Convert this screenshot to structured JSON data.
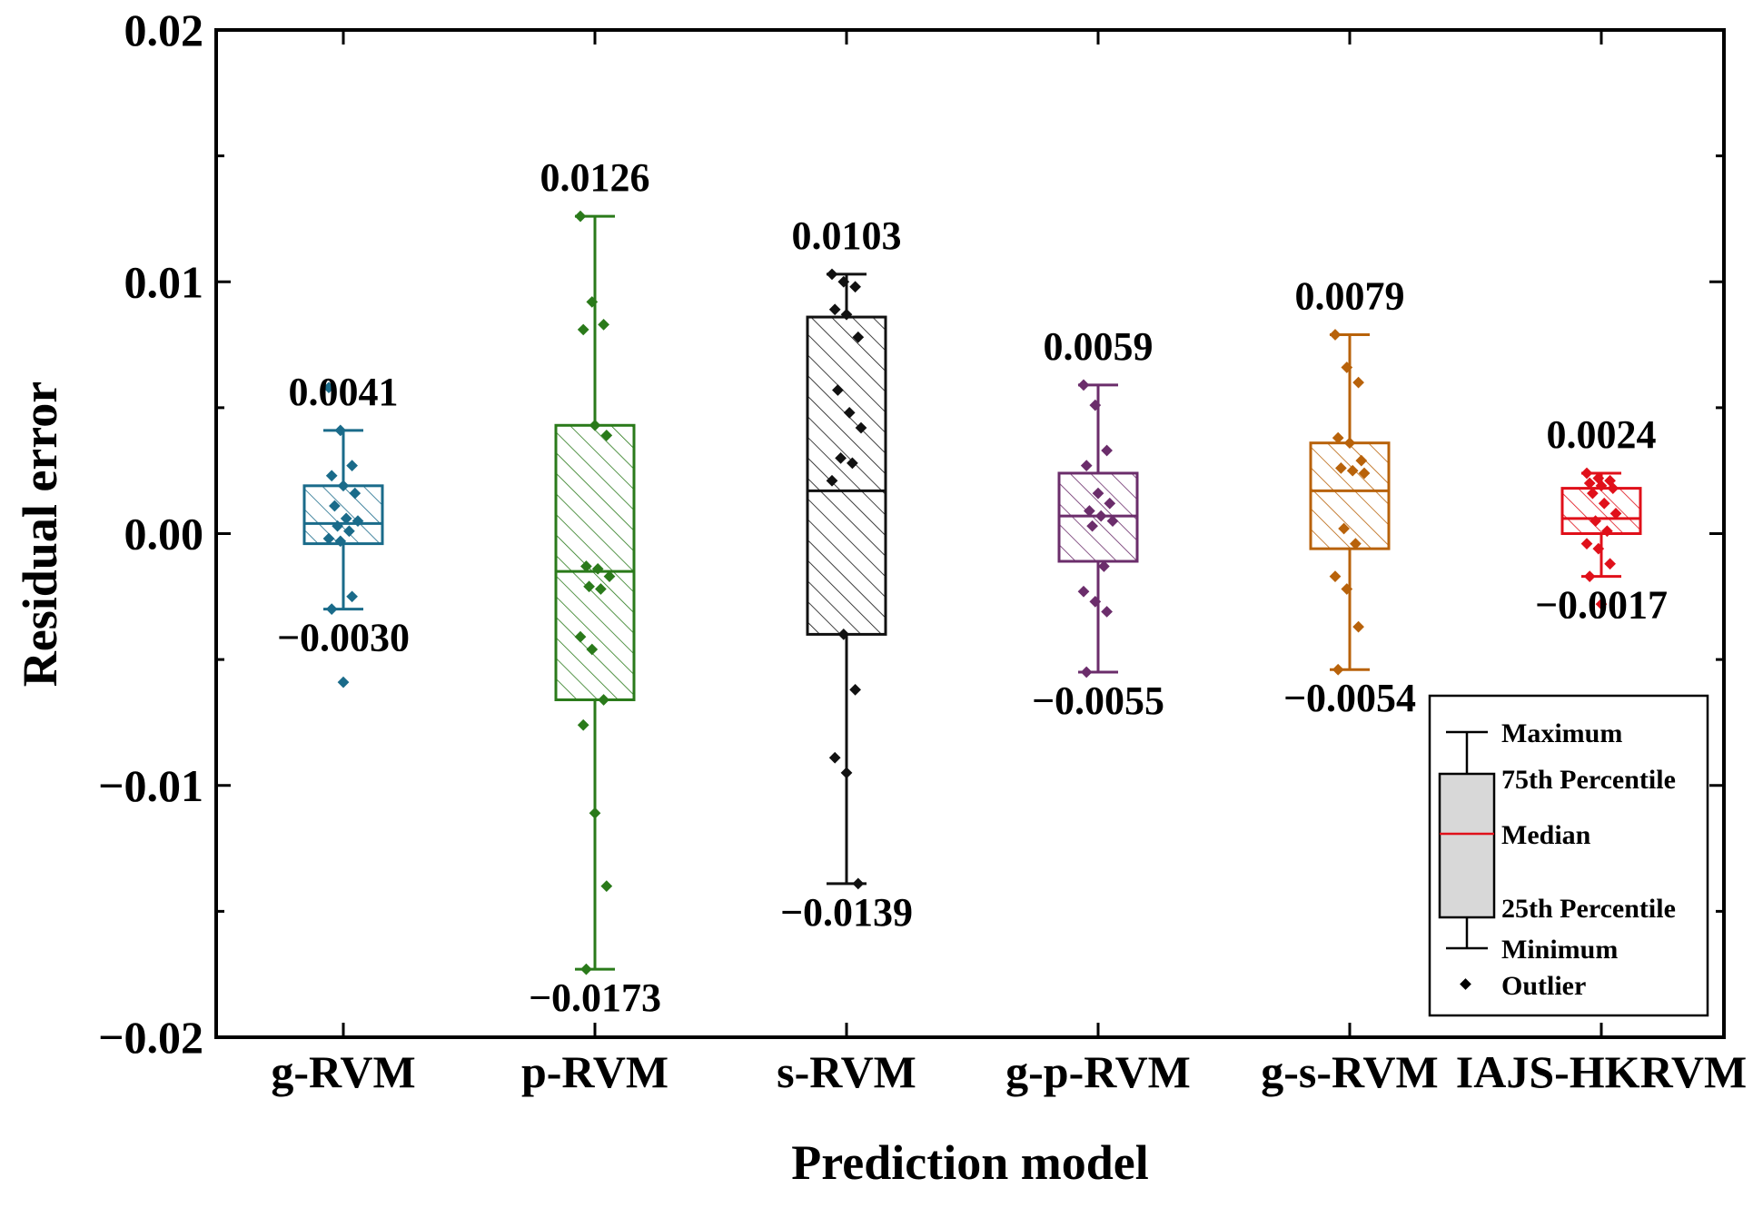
{
  "chart_data": {
    "type": "box",
    "title": "",
    "xlabel": "Prediction model",
    "ylabel": "Residual error",
    "ylim": [
      -0.02,
      0.02
    ],
    "yticks": [
      {
        "value": 0.02,
        "label": "0.02"
      },
      {
        "value": 0.01,
        "label": "0.01"
      },
      {
        "value": 0.0,
        "label": "0.00"
      },
      {
        "value": -0.01,
        "label": "−0.01"
      },
      {
        "value": -0.02,
        "label": "−0.02"
      }
    ],
    "categories": [
      "g-RVM",
      "p-RVM",
      "s-RVM",
      "g-p-RVM",
      "g-s-RVM",
      "IAJS-HKRVM"
    ],
    "series": [
      {
        "name": "g-RVM",
        "color": "#1a6b8a",
        "min": -0.003,
        "q1": -0.0004,
        "median": 0.0004,
        "q3": 0.0019,
        "max": 0.0041,
        "max_label": "0.0041",
        "min_label": "−0.0030",
        "points": [
          0.0058,
          0.0041,
          0.0027,
          0.0023,
          0.0019,
          0.0016,
          0.0011,
          0.0006,
          0.0005,
          0.0003,
          0.0001,
          -0.0002,
          -0.0003,
          -0.0025,
          -0.003,
          -0.0059
        ]
      },
      {
        "name": "p-RVM",
        "color": "#2a7a1a",
        "min": -0.0173,
        "q1": -0.0066,
        "median": -0.0015,
        "q3": 0.0043,
        "max": 0.0126,
        "max_label": "0.0126",
        "min_label": "−0.0173",
        "points": [
          0.0126,
          0.0092,
          0.0083,
          0.0081,
          0.0043,
          0.0039,
          -0.0013,
          -0.0014,
          -0.0017,
          -0.0021,
          -0.0022,
          -0.0041,
          -0.0046,
          -0.0066,
          -0.0076,
          -0.0111,
          -0.014,
          -0.0173
        ]
      },
      {
        "name": "s-RVM",
        "color": "#111111",
        "min": -0.0139,
        "q1": -0.004,
        "median": 0.0017,
        "q3": 0.0086,
        "max": 0.0103,
        "max_label": "0.0103",
        "min_label": "−0.0139",
        "points": [
          0.0103,
          0.01,
          0.0098,
          0.0089,
          0.0087,
          0.0078,
          0.0057,
          0.0048,
          0.0042,
          0.003,
          0.0028,
          0.0021,
          -0.004,
          -0.0062,
          -0.0089,
          -0.0095,
          -0.0139
        ]
      },
      {
        "name": "g-p-RVM",
        "color": "#6b2d6b",
        "min": -0.0055,
        "q1": -0.0011,
        "median": 0.0007,
        "q3": 0.0024,
        "max": 0.0059,
        "max_label": "0.0059",
        "min_label": "−0.0055",
        "points": [
          0.0059,
          0.0051,
          0.0033,
          0.0027,
          0.0016,
          0.0012,
          0.0009,
          0.0007,
          0.0005,
          0.0003,
          -0.0013,
          -0.0023,
          -0.0027,
          -0.0031,
          -0.0055
        ]
      },
      {
        "name": "g-s-RVM",
        "color": "#b8620a",
        "min": -0.0054,
        "q1": -0.0006,
        "median": 0.0017,
        "q3": 0.0036,
        "max": 0.0079,
        "max_label": "0.0079",
        "min_label": "−0.0054",
        "points": [
          0.0079,
          0.0066,
          0.006,
          0.0038,
          0.0036,
          0.0029,
          0.0026,
          0.0025,
          0.0024,
          0.0002,
          -0.0004,
          -0.0017,
          -0.0022,
          -0.0037,
          -0.0054
        ]
      },
      {
        "name": "IAJS-HKRVM",
        "color": "#e0101a",
        "min": -0.0017,
        "q1": 0.0,
        "median": 0.0006,
        "q3": 0.0018,
        "max": 0.0024,
        "max_label": "0.0024",
        "min_label": "−0.0017",
        "points": [
          0.0024,
          0.0022,
          0.0021,
          0.002,
          0.0019,
          0.0018,
          0.0016,
          0.0012,
          0.0008,
          0.0005,
          0.0001,
          -0.0004,
          -0.0006,
          -0.0012,
          -0.0017,
          -0.0028
        ]
      }
    ],
    "legend": {
      "position": "bottom-right",
      "items": [
        "Maximum",
        "75th Percentile",
        "Median",
        "25th Percentile",
        "Minimum",
        "Outlier"
      ]
    }
  }
}
